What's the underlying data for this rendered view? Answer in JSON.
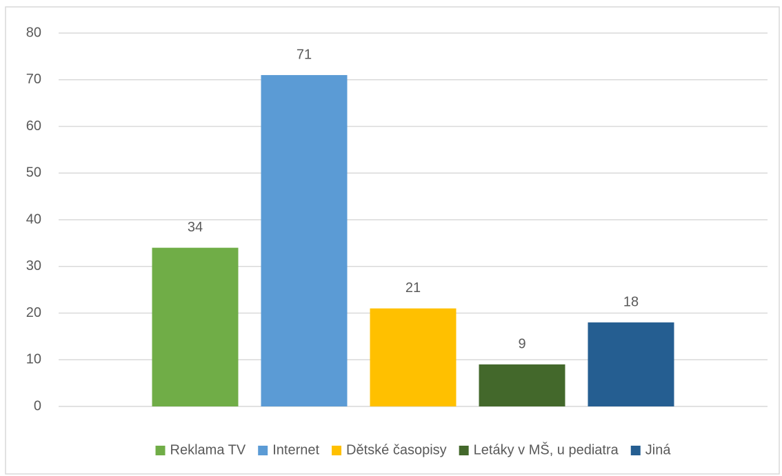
{
  "chart_data": {
    "type": "bar",
    "categories": [
      null
    ],
    "series": [
      {
        "name": "Reklama TV",
        "color": "#70ad47",
        "values": [
          34
        ]
      },
      {
        "name": "Internet",
        "color": "#5b9bd5",
        "values": [
          71
        ]
      },
      {
        "name": "Dětské časopisy",
        "color": "#ffc000",
        "values": [
          21
        ]
      },
      {
        "name": "Letáky v MŠ, u pediatra",
        "color": "#43682b",
        "values": [
          9
        ]
      },
      {
        "name": "Jiná",
        "color": "#255e91",
        "values": [
          18
        ]
      }
    ],
    "ylim": [
      0,
      80
    ],
    "yticks": [
      0,
      10,
      20,
      30,
      40,
      50,
      60,
      70,
      80
    ],
    "grid": true,
    "legend": "bottom",
    "data_labels": true
  }
}
